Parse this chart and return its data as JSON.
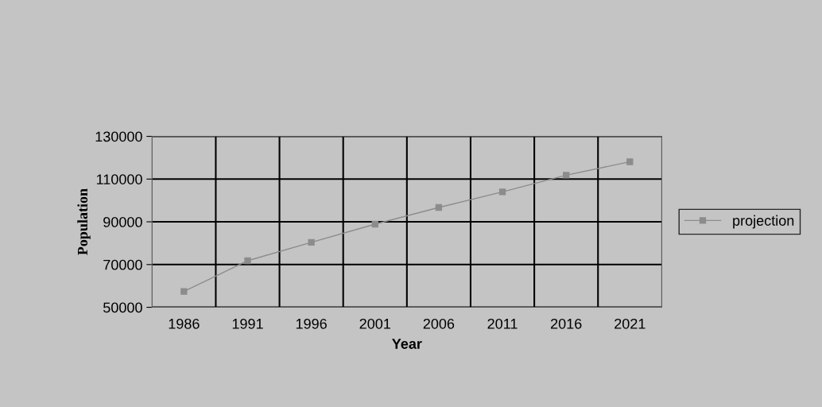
{
  "chart_data": {
    "type": "line",
    "xlabel": "Year",
    "ylabel": "Population",
    "categories": [
      "1986",
      "1991",
      "1996",
      "2001",
      "2006",
      "2011",
      "2016",
      "2021"
    ],
    "series": [
      {
        "name": "projection",
        "color": "#8c8c8c",
        "values": [
          57400,
          71800,
          80400,
          88900,
          96700,
          104000,
          111800,
          118100
        ]
      }
    ],
    "ylim": [
      50000,
      130000
    ],
    "yticks": [
      50000,
      70000,
      90000,
      110000,
      130000
    ],
    "grid": true,
    "legend": "right",
    "marker": "square",
    "line_style": "solid"
  }
}
